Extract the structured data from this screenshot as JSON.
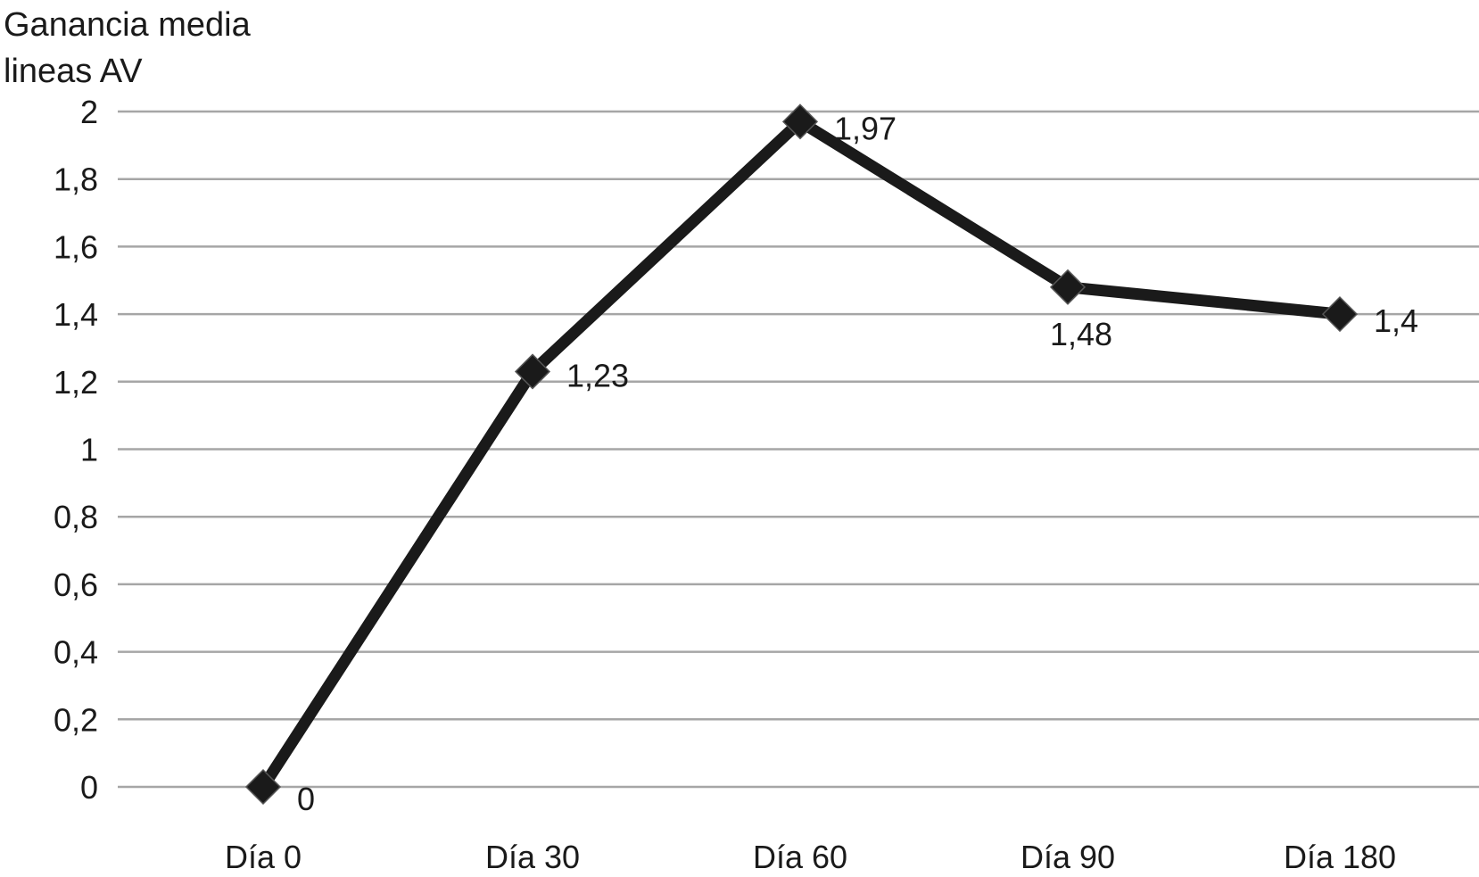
{
  "chart_data": {
    "type": "line",
    "ylabel_lines": [
      "Ganancia media",
      "lineas AV"
    ],
    "categories": [
      "Día 0",
      "Día 30",
      "Día 60",
      "Día 90",
      "Día 180"
    ],
    "series": [
      {
        "values": [
          0,
          1.23,
          1.97,
          1.48,
          1.4
        ],
        "data_labels": [
          "0",
          "1,23",
          "1,97",
          "1,48",
          "1,4"
        ]
      }
    ],
    "yticks": [
      "0",
      "0,2",
      "0,4",
      "0,6",
      "0,8",
      "1",
      "1,2",
      "1,4",
      "1,6",
      "1,8",
      "2"
    ],
    "ylim": [
      0,
      2
    ],
    "grid": true,
    "line_color": "#1a1a1a",
    "grid_color": "#a6a6a6"
  }
}
